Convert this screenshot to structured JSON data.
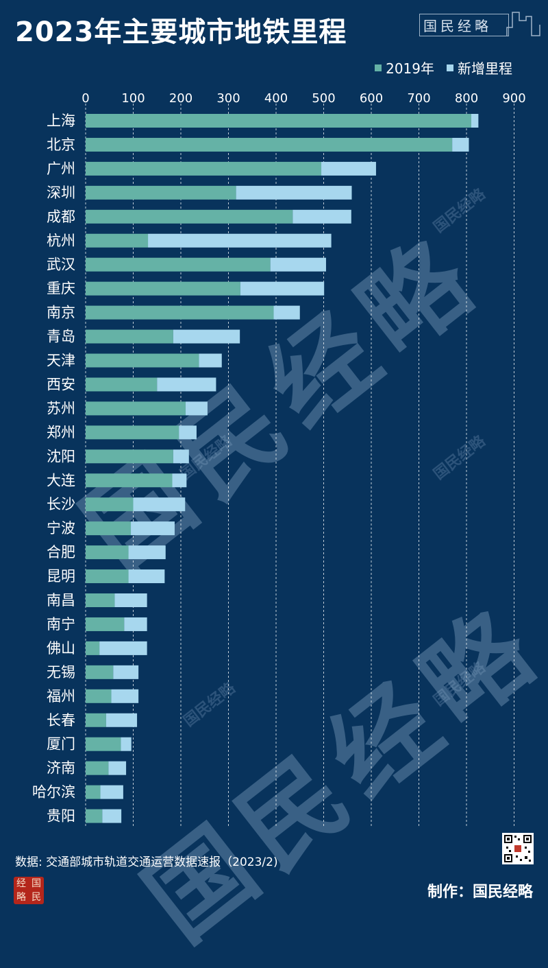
{
  "title": "2023年主要城市地铁里程",
  "brand": {
    "text": "国民经略"
  },
  "legend": {
    "items": [
      {
        "label": "2019年",
        "color": "#65b2a6"
      },
      {
        "label": "新增里程",
        "color": "#a7d7ee"
      }
    ]
  },
  "chart_data": {
    "type": "bar",
    "orientation": "horizontal",
    "stacked": true,
    "categories": [
      "上海",
      "北京",
      "广州",
      "深圳",
      "成都",
      "杭州",
      "武汉",
      "重庆",
      "南京",
      "青岛",
      "天津",
      "西安",
      "苏州",
      "郑州",
      "沈阳",
      "大连",
      "长沙",
      "宁波",
      "合肥",
      "昆明",
      "南昌",
      "南宁",
      "佛山",
      "无锡",
      "福州",
      "长春",
      "厦门",
      "济南",
      "哈尔滨",
      "贵阳"
    ],
    "series": [
      {
        "name": "2019年",
        "color": "#65b2a6",
        "values": [
          810,
          770,
          495,
          316,
          435,
          131,
          388,
          325,
          395,
          184,
          238,
          150,
          210,
          196,
          184,
          182,
          100,
          95,
          90,
          90,
          61,
          81,
          29,
          58,
          54,
          43,
          74,
          48,
          31,
          35
        ]
      },
      {
        "name": "新增里程",
        "color": "#a7d7ee",
        "values": [
          15,
          35,
          115,
          243,
          123,
          385,
          117,
          176,
          55,
          140,
          48,
          124,
          46,
          37,
          33,
          30,
          109,
          92,
          78,
          76,
          68,
          48,
          100,
          53,
          57,
          65,
          22,
          37,
          48,
          40
        ]
      }
    ],
    "x_ticks": [
      0,
      100,
      200,
      300,
      400,
      500,
      600,
      700,
      800,
      900
    ],
    "xlim": [
      0,
      900
    ],
    "grid": "vertical dashed",
    "legend_position": "top-right"
  },
  "watermark": {
    "text": "国民经略"
  },
  "source": "数据: 交通部城市轨道交通运营数据速报（2023/2)",
  "maker": "制作：国民经略",
  "logo": {
    "chars": [
      "经",
      "国",
      "略",
      "民"
    ]
  }
}
